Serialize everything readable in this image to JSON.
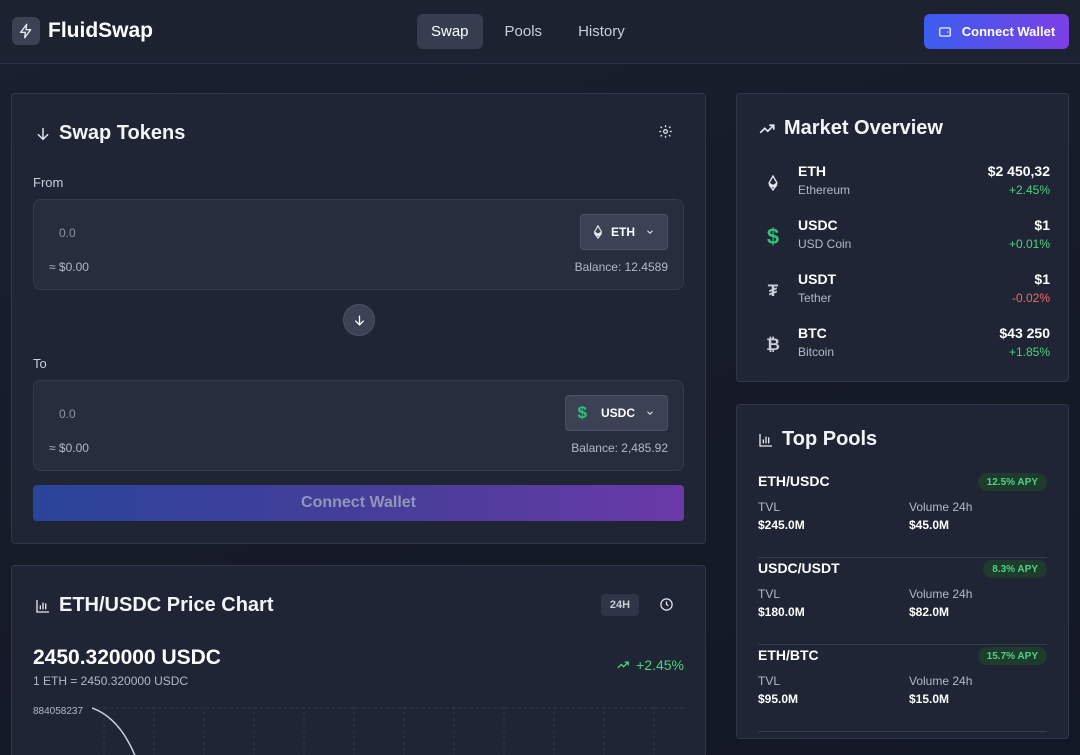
{
  "app": {
    "name": "FluidSwap"
  },
  "nav": {
    "items": [
      {
        "label": "Swap"
      },
      {
        "label": "Pools"
      },
      {
        "label": "History"
      }
    ]
  },
  "header": {
    "connect_label": "Connect Wallet"
  },
  "swap": {
    "title": "Swap Tokens",
    "from": {
      "label": "From",
      "amount_placeholder": "0.0",
      "usd": "≈ $0.00",
      "token": "ETH",
      "balance": "Balance: 12.4589"
    },
    "to": {
      "label": "To",
      "amount_placeholder": "0.0",
      "usd": "≈ $0.00",
      "token": "USDC",
      "balance": "Balance: 2,485.92"
    },
    "connect_label": "Connect Wallet"
  },
  "chart": {
    "title": "ETH/USDC Price Chart",
    "timeframe": "24H",
    "price": "2450.320000 USDC",
    "rate": "1 ETH = 2450.320000 USDC",
    "change": "+2.45%",
    "y_tick": "884058237"
  },
  "chart_data": {
    "type": "line",
    "title": "ETH/USDC Price Chart",
    "y_ticks": [
      "884058237"
    ],
    "grid": true,
    "series": []
  },
  "market": {
    "title": "Market Overview",
    "items": [
      {
        "symbol": "ETH",
        "name": "Ethereum",
        "price": "$2 450,32",
        "change": "+2.45%",
        "icon": "ethereum-icon",
        "trend": "pos"
      },
      {
        "symbol": "USDC",
        "name": "USD Coin",
        "price": "$1",
        "change": "+0.01%",
        "icon": "dollar-icon",
        "trend": "pos"
      },
      {
        "symbol": "USDT",
        "name": "Tether",
        "price": "$1",
        "change": "-0.02%",
        "icon": "tether-icon",
        "trend": "neg"
      },
      {
        "symbol": "BTC",
        "name": "Bitcoin",
        "price": "$43 250",
        "change": "+1.85%",
        "icon": "bitcoin-icon",
        "trend": "pos"
      }
    ]
  },
  "pools": {
    "title": "Top Pools",
    "tvl_label": "TVL",
    "volume_label": "Volume 24h",
    "items": [
      {
        "pair": "ETH/USDC",
        "apy": "12.5% APY",
        "tvl": "$245.0M",
        "volume": "$45.0M"
      },
      {
        "pair": "USDC/USDT",
        "apy": "8.3% APY",
        "tvl": "$180.0M",
        "volume": "$82.0M"
      },
      {
        "pair": "ETH/BTC",
        "apy": "15.7% APY",
        "tvl": "$95.0M",
        "volume": "$15.0M"
      }
    ]
  },
  "colors": {
    "accent_start": "#3b5ef0",
    "accent_end": "#7b3fe4",
    "positive": "#4cd37f",
    "negative": "#f06a6a",
    "usdc": "#2fc27a"
  }
}
